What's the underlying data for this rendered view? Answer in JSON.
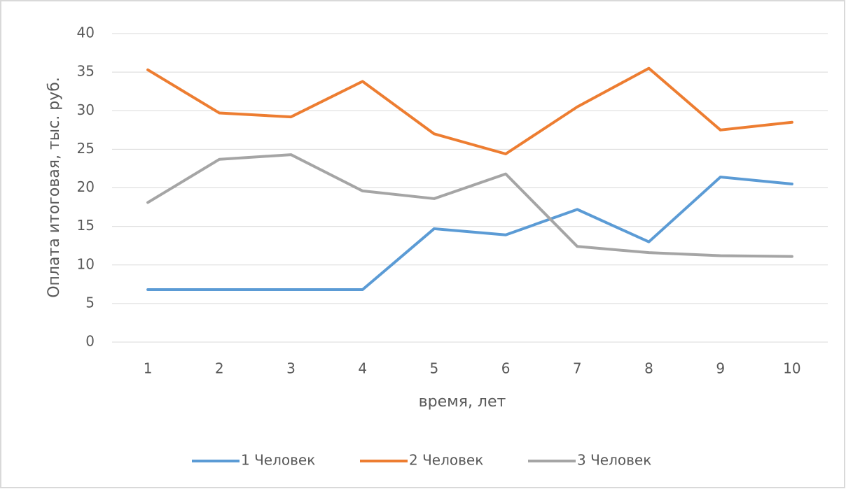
{
  "chart_data": {
    "type": "line",
    "x_label": "время, лет",
    "y_label": "Оплата итоговая, тыс. руб.",
    "categories": [
      "1",
      "2",
      "3",
      "4",
      "5",
      "6",
      "7",
      "8",
      "9",
      "10"
    ],
    "series": [
      {
        "name": "1 Человек",
        "color": "#5b9bd5",
        "values": [
          6.8,
          6.8,
          6.8,
          6.8,
          14.7,
          13.9,
          17.2,
          13.0,
          21.4,
          20.5
        ]
      },
      {
        "name": "2 Человек",
        "color": "#ed7d31",
        "values": [
          35.3,
          29.7,
          29.2,
          33.8,
          27.0,
          24.4,
          30.5,
          35.5,
          27.5,
          28.5
        ]
      },
      {
        "name": "3 Человек",
        "color": "#a5a5a5",
        "values": [
          18.1,
          23.7,
          24.3,
          19.6,
          18.6,
          21.8,
          12.4,
          11.6,
          11.2,
          11.1
        ]
      }
    ],
    "ylim": [
      0,
      40
    ],
    "yticks": [
      0,
      5,
      10,
      15,
      20,
      25,
      30,
      35,
      40
    ],
    "grid": true,
    "legend": "bottom"
  }
}
